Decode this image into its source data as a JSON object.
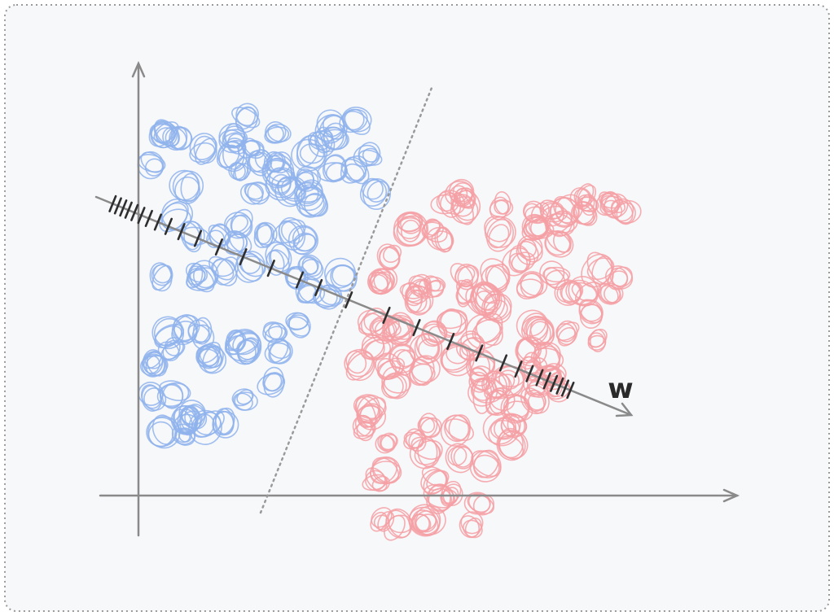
{
  "axis_label": "w"
}
